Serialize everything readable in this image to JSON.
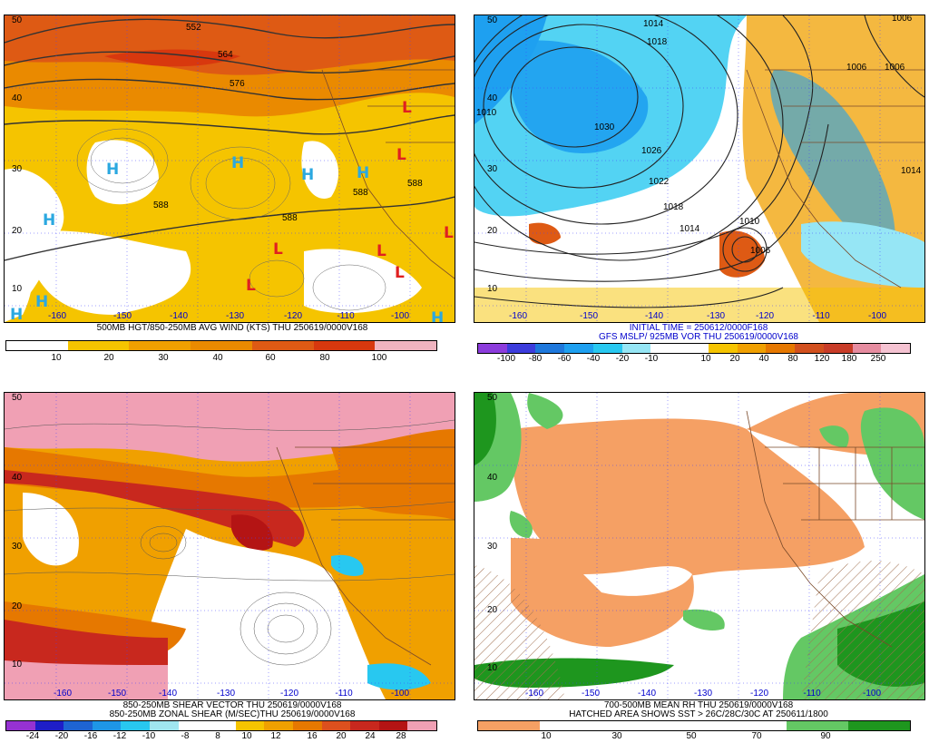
{
  "panels": [
    {
      "caption": "500MB HGT/850-250MB AVG WIND (KTS) THU 250619/0000V168",
      "lats": [
        "50",
        "40",
        "30",
        "20",
        "10"
      ],
      "lons": [
        "-160",
        "-150",
        "-140",
        "-130",
        "-120",
        "-110",
        "-100"
      ],
      "colorbar": {
        "colors": [
          "#ffffff",
          "#f5c400",
          "#f0a000",
          "#ea8a00",
          "#de5a14",
          "#d8380e",
          "#f0b4c0"
        ],
        "labels": [
          "10",
          "20",
          "30",
          "40",
          "60",
          "80",
          "100"
        ]
      },
      "contours": [
        "552",
        "564",
        "576",
        "588",
        "588",
        "588",
        "588"
      ],
      "centers": [
        {
          "t": "H"
        },
        {
          "t": "H"
        },
        {
          "t": "H"
        },
        {
          "t": "H"
        },
        {
          "t": "H"
        },
        {
          "t": "H"
        },
        {
          "t": "H"
        },
        {
          "t": "H"
        },
        {
          "t": "L"
        },
        {
          "t": "L"
        },
        {
          "t": "L"
        },
        {
          "t": "L"
        },
        {
          "t": "L"
        },
        {
          "t": "L"
        },
        {
          "t": "L"
        }
      ]
    },
    {
      "caption_line1": "INITIAL TIME = 250612/0000F168",
      "caption_line2": "GFS MSLP/ 925MB VOR THU 250619/0000V168",
      "lats": [
        "50",
        "40",
        "30",
        "20",
        "10"
      ],
      "lons": [
        "-160",
        "-150",
        "-140",
        "-130",
        "-120",
        "-110",
        "-100"
      ],
      "colorbar": {
        "colors": [
          "#8c3cdc",
          "#3c3cdc",
          "#1e78dc",
          "#1ea0f0",
          "#28c8f0",
          "#96e6f5",
          "#ffffff",
          "#ffffff",
          "#f5c400",
          "#f0a000",
          "#e67800",
          "#d2501e",
          "#c83c28",
          "#e68ca0",
          "#f5c3d2"
        ],
        "labels": [
          "-100",
          "-80",
          "-60",
          "-40",
          "-20",
          "-10",
          "10",
          "20",
          "40",
          "80",
          "120",
          "180",
          "250"
        ]
      },
      "isobars": [
        "1014",
        "1018",
        "1030",
        "1026",
        "1022",
        "1018",
        "1014",
        "1010",
        "1006",
        "1006",
        "1006",
        "1006",
        "1014",
        "1010"
      ]
    },
    {
      "caption_line1": "850-250MB SHEAR VECTOR THU 250619/0000V168",
      "caption_line2": "850-250MB ZONAL SHEAR (M/SEC)THU 250619/0000V168",
      "lats": [
        "50",
        "40",
        "30",
        "20",
        "10"
      ],
      "lons": [
        "-160",
        "-150",
        "-140",
        "-130",
        "-120",
        "-110",
        "-100"
      ],
      "colorbar": {
        "colors": [
          "#9632d2",
          "#1e1ec8",
          "#1e64d2",
          "#1e96e6",
          "#28c8f0",
          "#a0e6f0",
          "#ffffff",
          "#ffffff",
          "#f5c400",
          "#f0a000",
          "#e67800",
          "#dc501e",
          "#c8281e",
          "#b41414",
          "#f0a0b4"
        ],
        "labels": [
          "-24",
          "-20",
          "-16",
          "-12",
          "-10",
          "-8",
          "8",
          "10",
          "12",
          "16",
          "20",
          "24",
          "28"
        ]
      }
    },
    {
      "caption_line1": "700-500MB MEAN RH THU 250619/0000V168",
      "caption_line2": "HATCHED AREA SHOWS SST > 26C/28C/30C AT 250611/1800",
      "lats": [
        "50",
        "40",
        "30",
        "20",
        "10"
      ],
      "lons": [
        "-160",
        "-150",
        "-140",
        "-130",
        "-120",
        "-110",
        "-100"
      ],
      "colorbar": {
        "colors": [
          "#f5a064",
          "#ffffff",
          "#ffffff",
          "#ffffff",
          "#ffffff",
          "#64c864",
          "#1e961e"
        ],
        "labels": [
          "10",
          "30",
          "50",
          "70",
          "90"
        ]
      }
    }
  ]
}
